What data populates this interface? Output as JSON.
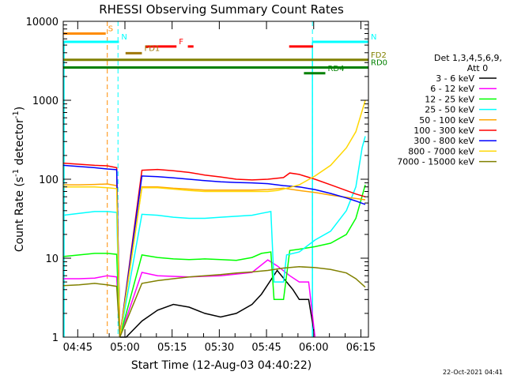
{
  "chart_data": {
    "type": "line",
    "title": "RHESSI Observing Summary Count Rates",
    "xlabel": "Start Time (12-Aug-03 04:40:22)",
    "ylabel_main": "Count Rate (s",
    "ylabel_sup1": "-1",
    "ylabel_mid": " detector",
    "ylabel_sup2": "-1",
    "ylabel_end": ")",
    "yscale": "log",
    "ylim": [
      1,
      10000
    ],
    "xlim_minutes": [
      0,
      97
    ],
    "x_tick_minutes": [
      4.6,
      19.6,
      34.6,
      49.6,
      64.6,
      79.6,
      94.6
    ],
    "x_tick_labels": [
      "04:45",
      "05:00",
      "05:15",
      "05:30",
      "05:45",
      "06:00",
      "06:15"
    ],
    "y_tick_values": [
      1,
      10,
      100,
      1000,
      10000
    ],
    "y_tick_labels": [
      "1",
      "10",
      "100",
      "1000",
      "10000"
    ],
    "legend_header": [
      "Det 1,3,4,5,6,9,",
      "Att 0"
    ],
    "series": [
      {
        "name": "3 - 6 keV",
        "color": "#000000",
        "points": [
          [
            18,
            1
          ],
          [
            20,
            1
          ],
          [
            25,
            1.6
          ],
          [
            30,
            2.2
          ],
          [
            35,
            2.6
          ],
          [
            40,
            2.4
          ],
          [
            45,
            2.0
          ],
          [
            50,
            1.8
          ],
          [
            55,
            2.0
          ],
          [
            60,
            2.6
          ],
          [
            63,
            3.5
          ],
          [
            68,
            7
          ],
          [
            71,
            5
          ],
          [
            73,
            4
          ],
          [
            75,
            3
          ],
          [
            78,
            3
          ],
          [
            80,
            1
          ]
        ]
      },
      {
        "name": "6 - 12 keV",
        "color": "#ff00ff",
        "points": [
          [
            0,
            5.5
          ],
          [
            5,
            5.5
          ],
          [
            10,
            5.6
          ],
          [
            14,
            6.0
          ],
          [
            17,
            5.8
          ],
          [
            18,
            1
          ],
          [
            25,
            6.6
          ],
          [
            30,
            6.0
          ],
          [
            40,
            5.8
          ],
          [
            50,
            6.0
          ],
          [
            60,
            6.6
          ],
          [
            65,
            9.5
          ],
          [
            68,
            8
          ],
          [
            72,
            6
          ],
          [
            75,
            5
          ],
          [
            78,
            5
          ],
          [
            80,
            1
          ]
        ]
      },
      {
        "name": "12 - 25 keV",
        "color": "#00ff00",
        "points": [
          [
            0,
            10.5
          ],
          [
            5,
            11
          ],
          [
            10,
            11.5
          ],
          [
            14,
            11.5
          ],
          [
            17,
            11.2
          ],
          [
            18,
            1
          ],
          [
            25,
            11
          ],
          [
            30,
            10.2
          ],
          [
            35,
            9.8
          ],
          [
            40,
            9.6
          ],
          [
            45,
            9.8
          ],
          [
            50,
            9.6
          ],
          [
            55,
            9.4
          ],
          [
            60,
            10.2
          ],
          [
            63,
            11.5
          ],
          [
            66,
            12
          ],
          [
            67,
            3
          ],
          [
            70,
            3
          ],
          [
            72,
            12.5
          ],
          [
            75,
            13
          ],
          [
            80,
            14
          ],
          [
            85,
            15.5
          ],
          [
            90,
            20
          ],
          [
            93,
            32
          ],
          [
            96,
            85
          ]
        ]
      },
      {
        "name": "25 - 50 keV",
        "color": "#00ffff",
        "points": [
          [
            0,
            35
          ],
          [
            5,
            37
          ],
          [
            10,
            39
          ],
          [
            14,
            39
          ],
          [
            17,
            38
          ],
          [
            18,
            1
          ],
          [
            25,
            36
          ],
          [
            30,
            35
          ],
          [
            35,
            33
          ],
          [
            40,
            32
          ],
          [
            45,
            32
          ],
          [
            50,
            33
          ],
          [
            55,
            34
          ],
          [
            60,
            35
          ],
          [
            63,
            37
          ],
          [
            66,
            39
          ],
          [
            67,
            5
          ],
          [
            70,
            5
          ],
          [
            71,
            11
          ],
          [
            75,
            12
          ],
          [
            80,
            17
          ],
          [
            85,
            22
          ],
          [
            90,
            40
          ],
          [
            93,
            80
          ],
          [
            95,
            250
          ],
          [
            96,
            350
          ]
        ]
      },
      {
        "name": "50 - 100 keV",
        "color": "#ffa500",
        "points": [
          [
            0,
            85
          ],
          [
            5,
            85
          ],
          [
            10,
            86
          ],
          [
            14,
            87
          ],
          [
            17,
            83
          ],
          [
            18,
            1
          ],
          [
            25,
            80
          ],
          [
            30,
            80
          ],
          [
            35,
            77
          ],
          [
            40,
            75
          ],
          [
            45,
            73
          ],
          [
            50,
            73
          ],
          [
            55,
            73
          ],
          [
            60,
            73
          ],
          [
            65,
            74
          ],
          [
            70,
            77
          ],
          [
            75,
            72
          ],
          [
            80,
            68
          ],
          [
            85,
            63
          ],
          [
            90,
            59
          ],
          [
            93,
            57
          ],
          [
            96,
            55
          ]
        ]
      },
      {
        "name": "100 - 300 keV",
        "color": "#ff0000",
        "points": [
          [
            0,
            160
          ],
          [
            5,
            155
          ],
          [
            10,
            150
          ],
          [
            14,
            148
          ],
          [
            17,
            140
          ],
          [
            18,
            1
          ],
          [
            25,
            130
          ],
          [
            30,
            133
          ],
          [
            35,
            128
          ],
          [
            40,
            122
          ],
          [
            45,
            113
          ],
          [
            50,
            107
          ],
          [
            55,
            100
          ],
          [
            60,
            98
          ],
          [
            65,
            100
          ],
          [
            70,
            105
          ],
          [
            72,
            120
          ],
          [
            75,
            115
          ],
          [
            80,
            100
          ],
          [
            85,
            85
          ],
          [
            90,
            72
          ],
          [
            93,
            65
          ],
          [
            96,
            60
          ]
        ]
      },
      {
        "name": "300 - 800 keV",
        "color": "#0000ff",
        "points": [
          [
            0,
            150
          ],
          [
            5,
            145
          ],
          [
            10,
            140
          ],
          [
            14,
            135
          ],
          [
            17,
            132
          ],
          [
            18,
            1
          ],
          [
            25,
            110
          ],
          [
            30,
            108
          ],
          [
            35,
            104
          ],
          [
            40,
            100
          ],
          [
            45,
            96
          ],
          [
            50,
            93
          ],
          [
            55,
            91
          ],
          [
            60,
            90
          ],
          [
            65,
            88
          ],
          [
            70,
            83
          ],
          [
            75,
            80
          ],
          [
            80,
            74
          ],
          [
            85,
            66
          ],
          [
            90,
            58
          ],
          [
            93,
            53
          ],
          [
            96,
            48
          ]
        ]
      },
      {
        "name": "800 - 7000 keV",
        "color": "#ffd700",
        "points": [
          [
            0,
            80
          ],
          [
            5,
            80
          ],
          [
            10,
            80
          ],
          [
            14,
            78
          ],
          [
            17,
            76
          ],
          [
            18,
            1
          ],
          [
            25,
            78
          ],
          [
            30,
            78
          ],
          [
            35,
            75
          ],
          [
            40,
            72
          ],
          [
            45,
            70
          ],
          [
            50,
            70
          ],
          [
            55,
            70
          ],
          [
            60,
            70
          ],
          [
            65,
            70
          ],
          [
            68,
            72
          ],
          [
            70,
            75
          ],
          [
            75,
            85
          ],
          [
            80,
            110
          ],
          [
            85,
            150
          ],
          [
            90,
            250
          ],
          [
            93,
            400
          ],
          [
            96,
            1000
          ]
        ]
      },
      {
        "name": "7000 - 15000 keV",
        "color": "#808000",
        "points": [
          [
            0,
            4.5
          ],
          [
            5,
            4.6
          ],
          [
            10,
            4.8
          ],
          [
            14,
            4.6
          ],
          [
            17,
            4.4
          ],
          [
            18,
            1
          ],
          [
            25,
            4.8
          ],
          [
            30,
            5.2
          ],
          [
            35,
            5.5
          ],
          [
            40,
            5.8
          ],
          [
            45,
            6
          ],
          [
            50,
            6.2
          ],
          [
            55,
            6.5
          ],
          [
            60,
            6.7
          ],
          [
            65,
            7
          ],
          [
            70,
            7.5
          ],
          [
            75,
            7.8
          ],
          [
            80,
            7.6
          ],
          [
            85,
            7.2
          ],
          [
            90,
            6.5
          ],
          [
            93,
            5.5
          ],
          [
            96,
            4.3
          ]
        ]
      }
    ],
    "flags": [
      {
        "label": "S",
        "color": "#ff8c00",
        "start": 0,
        "end": 13.5,
        "level": 7000
      },
      {
        "label": "N",
        "color": "#00ffff",
        "start": 0,
        "end": 17.7,
        "level": 5500
      },
      {
        "label": "N",
        "color": "#00ffff",
        "start": 79.2,
        "end": 97,
        "level": 5500
      },
      {
        "label": "F",
        "color": "#ff0000",
        "start": 26.2,
        "end": 36,
        "level": 4800
      },
      {
        "label": "",
        "color": "#ff0000",
        "start": 39.6,
        "end": 41.4,
        "level": 4800
      },
      {
        "label": "",
        "color": "#ff0000",
        "start": 71.8,
        "end": 79.4,
        "level": 4800
      },
      {
        "label": "FD1",
        "color": "#a0780a",
        "start": 19.8,
        "end": 25,
        "level": 3950
      },
      {
        "label": "FD2",
        "color": "#808000",
        "start": 0,
        "end": 97,
        "level": 3250
      },
      {
        "label": "RD0",
        "color": "#008000",
        "start": 0,
        "end": 97,
        "level": 2600
      },
      {
        "label": "RD4",
        "color": "#008000",
        "start": 76.5,
        "end": 83.3,
        "level": 2200
      }
    ],
    "vlines": [
      {
        "x_minutes": 14.0,
        "color": "#ff8c00"
      },
      {
        "x_minutes": 17.4,
        "color": "#00ffff"
      },
      {
        "x_minutes": 79.2,
        "color": "#00ffff"
      },
      {
        "x_minutes": 97.0,
        "color": "#00ffff"
      }
    ],
    "footer_date": "22-Oct-2021 04:41"
  },
  "colors": {
    "axis": "#000000",
    "background": "#ffffff"
  }
}
